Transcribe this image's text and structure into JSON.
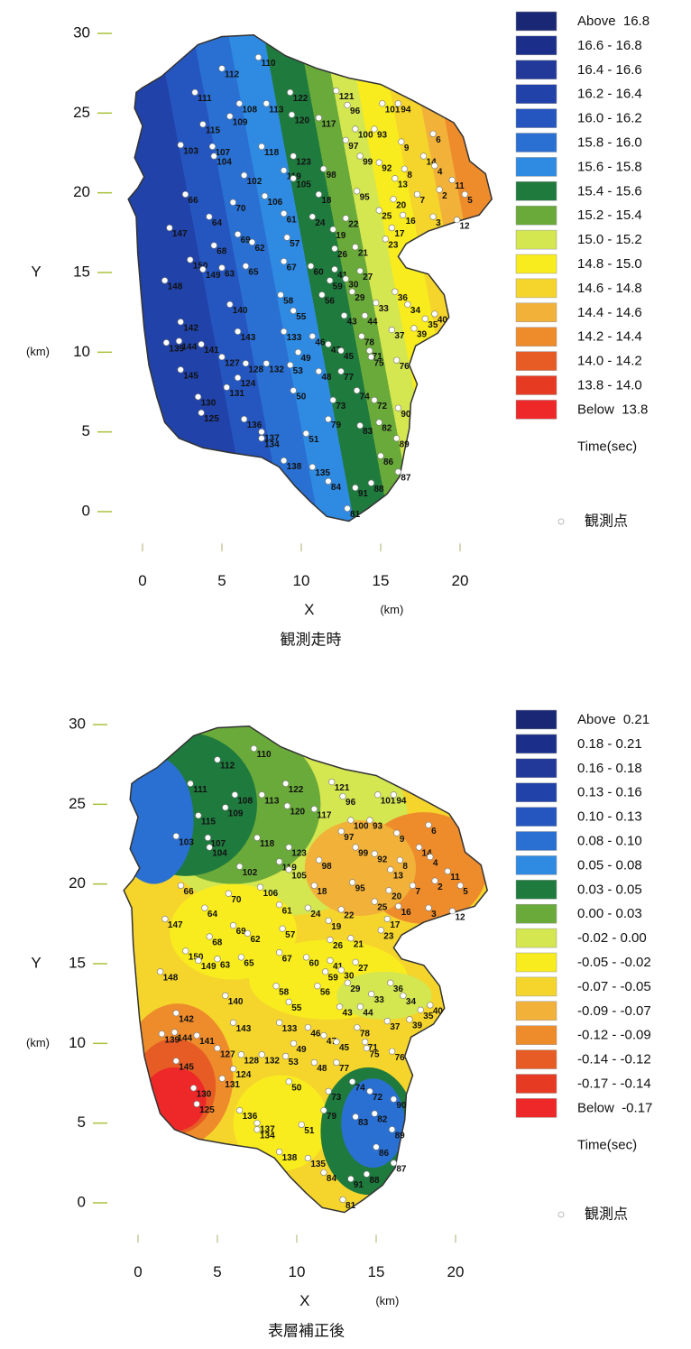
{
  "axes": {
    "x_label": "X",
    "y_label": "Y",
    "unit": "(km)",
    "xlim": [
      0,
      20
    ],
    "ylim": [
      0,
      30
    ],
    "xticks": [
      0,
      5,
      10,
      15,
      20
    ],
    "yticks": [
      0,
      5,
      10,
      15,
      20,
      25,
      30
    ]
  },
  "maps": [
    {
      "caption": "観測走時",
      "legend_title": "Time(sec)",
      "station_legend": "観測点",
      "legend": [
        "Above  16.8",
        "16.6 - 16.8",
        "16.4 - 16.6",
        "16.2 - 16.4",
        "16.0 - 16.2",
        "15.8 - 16.0",
        "15.6 - 15.8",
        "15.4 - 15.6",
        "15.2 - 15.4",
        "15.0 - 15.2",
        "14.8 - 15.0",
        "14.6 - 14.8",
        "14.4 - 14.6",
        "14.2 - 14.4",
        "14.0 - 14.2",
        "13.8 - 14.0",
        "Below  13.8"
      ]
    },
    {
      "caption": "表層補正後",
      "legend_title": "Time(sec)",
      "station_legend": "観測点",
      "legend": [
        "Above  0.21",
        "0.18 - 0.21",
        "0.16 - 0.18",
        "0.13 - 0.16",
        "0.10 - 0.13",
        "0.08 - 0.10",
        "0.05 - 0.08",
        "0.03 - 0.05",
        "0.00 - 0.03",
        "-0.02 - 0.00",
        "-0.05 - -0.02",
        "-0.07 - -0.05",
        "-0.09 - -0.07",
        "-0.12 - -0.09",
        "-0.14 - -0.12",
        "-0.17 - -0.14",
        "Below  -0.17"
      ]
    }
  ],
  "colors": [
    "#1a2774",
    "#1b2e8a",
    "#22399a",
    "#2142a8",
    "#2556c0",
    "#2a70d2",
    "#2f8ae2",
    "#1f7a3e",
    "#6aaa3a",
    "#d4e650",
    "#f8ec1e",
    "#f5d52c",
    "#f2b23a",
    "#ee8c2c",
    "#e65c24",
    "#e63a22",
    "#ee2828"
  ],
  "stations": {
    "labels": [
      "112",
      "110",
      "111",
      "108",
      "113",
      "122",
      "121",
      "101",
      "94",
      "96",
      "115",
      "109",
      "120",
      "117",
      "100",
      "93",
      "6",
      "9",
      "103",
      "107",
      "104",
      "118",
      "97",
      "99",
      "14",
      "123",
      "92",
      "8",
      "4",
      "102",
      "119",
      "105",
      "98",
      "13",
      "11",
      "66",
      "70",
      "106",
      "95",
      "2",
      "5",
      "18",
      "20",
      "7",
      "61",
      "24",
      "25",
      "16",
      "3",
      "12",
      "147",
      "64",
      "22",
      "19",
      "17",
      "57",
      "69",
      "68",
      "62",
      "23",
      "26",
      "21",
      "150",
      "148",
      "149",
      "63",
      "65",
      "67",
      "60",
      "41",
      "27",
      "59",
      "30",
      "58",
      "56",
      "29",
      "36",
      "33",
      "34",
      "140",
      "55",
      "43",
      "44",
      "40",
      "35",
      "142",
      "143",
      "133",
      "46",
      "39",
      "78",
      "37",
      "139",
      "144",
      "141",
      "47",
      "45",
      "49",
      "71",
      "127",
      "128",
      "132",
      "53",
      "75",
      "76",
      "145",
      "124",
      "48",
      "77",
      "131",
      "50",
      "74",
      "72",
      "130",
      "73",
      "90",
      "125",
      "79",
      "83",
      "82",
      "136",
      "137",
      "134",
      "51",
      "89",
      "138",
      "135",
      "86",
      "84",
      "91",
      "88",
      "87",
      "81"
    ],
    "x": [
      5.0,
      7.3,
      3.3,
      6.1,
      7.8,
      9.3,
      12.2,
      15.1,
      16.1,
      12.9,
      3.8,
      5.5,
      9.4,
      11.1,
      13.4,
      14.6,
      18.3,
      16.3,
      2.4,
      4.4,
      4.5,
      7.5,
      12.8,
      13.7,
      17.7,
      9.5,
      14.9,
      16.5,
      18.4,
      6.4,
      8.9,
      9.5,
      11.4,
      15.9,
      19.5,
      2.7,
      5.7,
      7.7,
      13.5,
      18.7,
      20.3,
      11.1,
      15.8,
      17.3,
      8.9,
      10.7,
      14.9,
      16.4,
      18.3,
      19.8,
      1.7,
      4.2,
      12.8,
      12.0,
      15.7,
      9.1,
      6.0,
      4.5,
      6.9,
      15.3,
      12.1,
      13.4,
      3.0,
      1.4,
      3.8,
      5.0,
      6.5,
      8.9,
      10.6,
      12.1,
      13.7,
      11.8,
      12.8,
      8.7,
      11.3,
      13.2,
      15.9,
      14.7,
      16.7,
      5.5,
      9.5,
      12.7,
      14.0,
      18.4,
      17.8,
      2.4,
      6.0,
      8.9,
      10.7,
      17.1,
      13.8,
      15.7,
      1.5,
      2.3,
      3.7,
      11.7,
      12.5,
      9.8,
      14.3,
      5.0,
      6.5,
      7.8,
      9.3,
      14.4,
      16.0,
      2.4,
      6.0,
      11.1,
      12.5,
      5.3,
      9.5,
      13.5,
      14.6,
      3.5,
      12.0,
      16.1,
      3.7,
      11.7,
      13.7,
      14.9,
      6.4,
      7.5,
      7.5,
      10.3,
      16.0,
      8.9,
      10.7,
      15.0,
      11.7,
      13.4,
      14.4,
      16.1,
      12.9
    ],
    "y": [
      27.8,
      28.5,
      26.3,
      25.6,
      25.6,
      26.3,
      26.4,
      25.6,
      25.6,
      25.5,
      24.3,
      24.8,
      24.9,
      24.7,
      24.0,
      24.0,
      23.7,
      23.2,
      23.0,
      22.9,
      22.3,
      22.9,
      23.3,
      22.3,
      22.3,
      22.3,
      21.9,
      21.5,
      21.7,
      21.1,
      21.4,
      20.9,
      21.5,
      20.9,
      20.8,
      19.9,
      19.4,
      19.8,
      20.1,
      20.2,
      19.9,
      19.9,
      19.6,
      19.9,
      18.7,
      18.5,
      18.9,
      18.6,
      18.5,
      18.3,
      17.8,
      18.5,
      18.4,
      17.7,
      17.8,
      17.2,
      17.4,
      16.7,
      16.9,
      17.1,
      16.5,
      16.6,
      15.8,
      14.5,
      15.2,
      15.3,
      15.4,
      15.7,
      15.4,
      15.2,
      15.1,
      14.5,
      14.6,
      13.6,
      13.6,
      13.8,
      13.8,
      13.1,
      13.0,
      13.0,
      12.6,
      12.3,
      12.3,
      12.4,
      12.1,
      11.9,
      11.3,
      11.3,
      11.0,
      11.5,
      11.0,
      11.4,
      10.6,
      10.7,
      10.5,
      10.5,
      10.1,
      10.0,
      10.1,
      9.7,
      9.3,
      9.3,
      9.2,
      9.7,
      9.5,
      8.9,
      8.4,
      8.8,
      8.8,
      7.8,
      7.6,
      7.6,
      7.0,
      7.2,
      7.0,
      6.5,
      6.2,
      5.8,
      5.4,
      5.6,
      5.8,
      5.0,
      4.6,
      4.9,
      4.6,
      3.2,
      2.8,
      3.5,
      1.9,
      1.5,
      1.8,
      2.5,
      0.2
    ]
  }
}
